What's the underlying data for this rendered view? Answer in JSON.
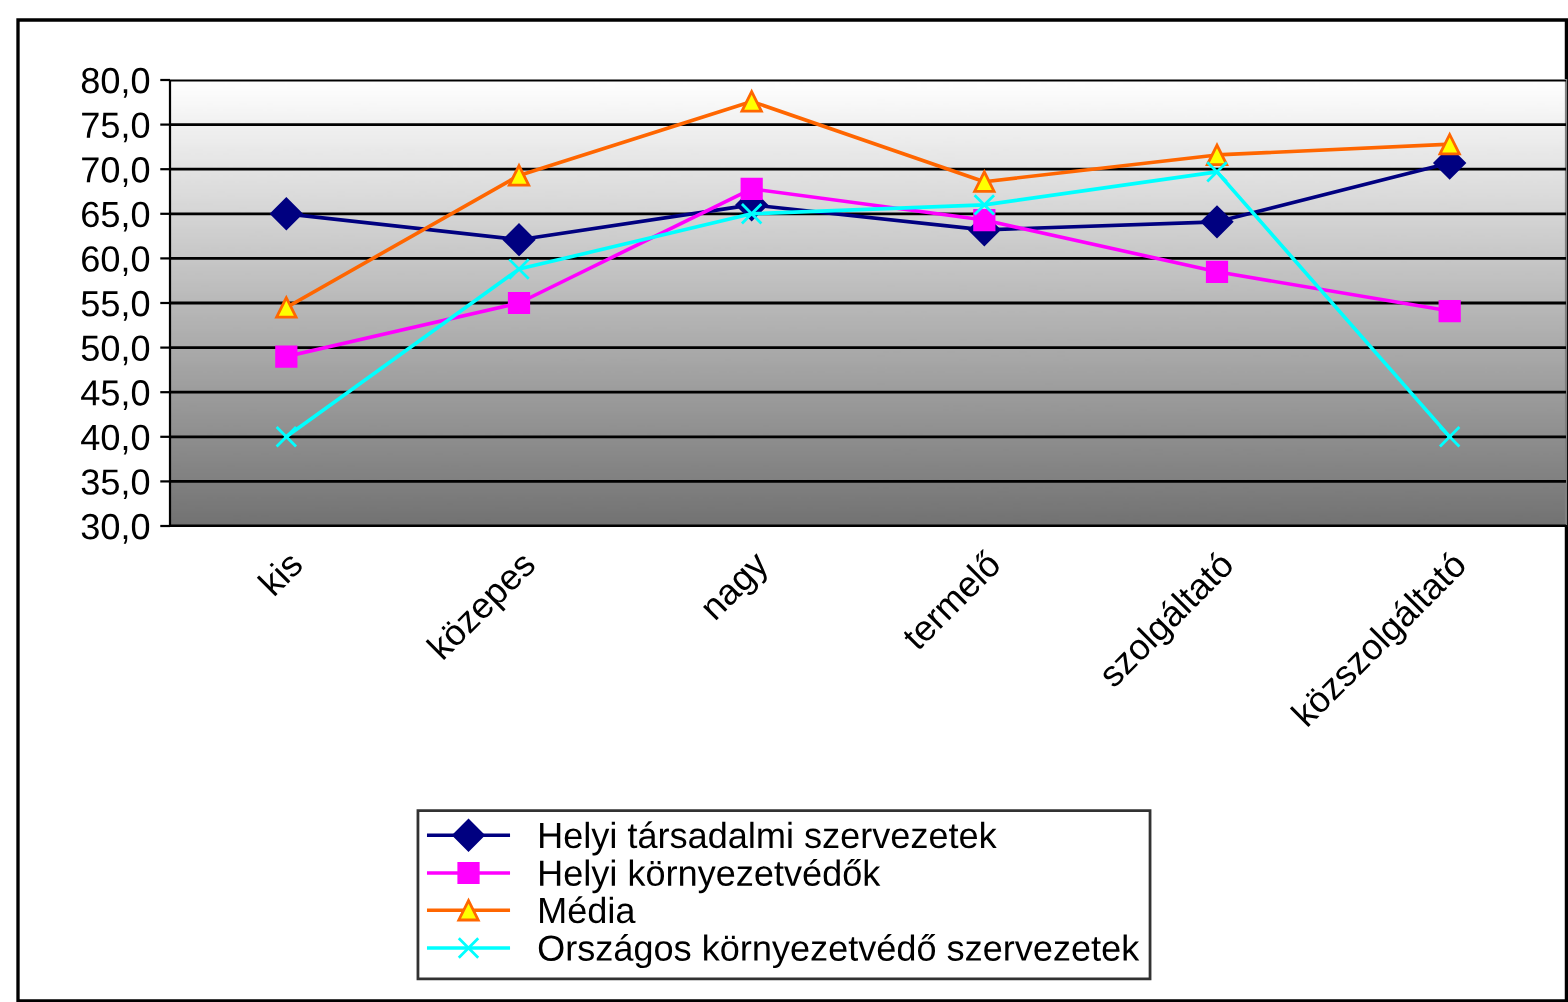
{
  "chart_data": {
    "type": "line",
    "categories": [
      "kis",
      "közepes",
      "nagy",
      "termelő",
      "szolgáltató",
      "közszolgáltató"
    ],
    "series": [
      {
        "name": "Helyi társadalmi szervezetek",
        "color": "#000080",
        "marker": "diamond",
        "values": [
          65.0,
          62.1,
          66.0,
          63.2,
          64.1,
          70.7
        ]
      },
      {
        "name": "Helyi környezetvédők",
        "color": "#ff00ff",
        "marker": "square",
        "values": [
          49.0,
          55.0,
          67.8,
          64.3,
          58.5,
          54.1
        ]
      },
      {
        "name": "Média",
        "color": "#ff6600",
        "marker": "triangle",
        "values": [
          54.5,
          69.3,
          77.6,
          68.6,
          71.6,
          72.8
        ]
      },
      {
        "name": "Országos környezetvédő szervezetek",
        "color": "#00ffff",
        "marker": "cross",
        "values": [
          40.0,
          58.8,
          65.0,
          66.0,
          69.7,
          40.0
        ]
      }
    ],
    "ylim": [
      30,
      80
    ],
    "yticks": [
      {
        "value": 30,
        "label": "30,0"
      },
      {
        "value": 35,
        "label": "35,0"
      },
      {
        "value": 40,
        "label": "40,0"
      },
      {
        "value": 45,
        "label": "45,0"
      },
      {
        "value": 50,
        "label": "50,0"
      },
      {
        "value": 55,
        "label": "55,0"
      },
      {
        "value": 60,
        "label": "60,0"
      },
      {
        "value": 65,
        "label": "65,0"
      },
      {
        "value": 70,
        "label": "70,0"
      },
      {
        "value": 75,
        "label": "75,0"
      },
      {
        "value": 80,
        "label": "80,0"
      }
    ],
    "grid": "y",
    "legend": "bottom",
    "line_style": "solid"
  }
}
